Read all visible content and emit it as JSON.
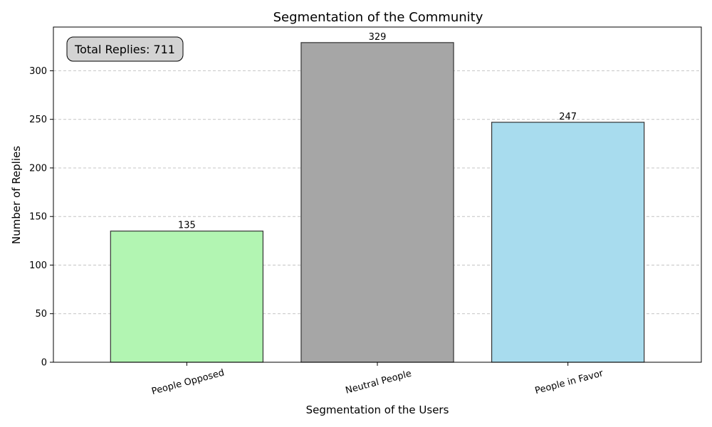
{
  "chart_data": {
    "type": "bar",
    "title": "Segmentation of the Community",
    "xlabel": "Segmentation of the Users",
    "ylabel": "Number of Replies",
    "categories": [
      "People Opposed",
      "Neutral People",
      "People in Favor"
    ],
    "values": [
      135,
      329,
      247
    ],
    "colors": [
      "#b2f5b2",
      "#a6a6a6",
      "#a8dcee"
    ],
    "edge_color": "#333333",
    "ylim": [
      0,
      345
    ],
    "yticks": [
      0,
      50,
      100,
      150,
      200,
      250,
      300
    ],
    "grid": "y-dashed",
    "annotation": "Total Replies: 711"
  }
}
